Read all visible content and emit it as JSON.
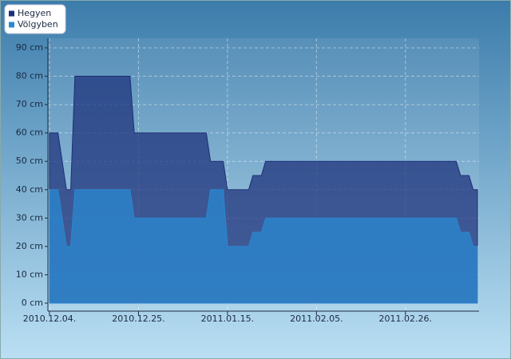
{
  "chart_data": {
    "type": "area",
    "x": [
      "2010-12-04",
      "2010-12-06",
      "2010-12-08",
      "2010-12-09",
      "2010-12-10",
      "2010-12-23",
      "2010-12-24",
      "2011-01-10",
      "2011-01-11",
      "2011-01-14",
      "2011-01-15",
      "2011-01-20",
      "2011-01-21",
      "2011-01-23",
      "2011-01-24",
      "2011-03-10",
      "2011-03-11",
      "2011-03-13",
      "2011-03-14",
      "2011-03-15"
    ],
    "series": [
      {
        "name": "Hegyen",
        "color": "#1c2f78",
        "values": [
          60,
          60,
          40,
          40,
          80,
          80,
          60,
          60,
          50,
          50,
          40,
          40,
          45,
          45,
          50,
          50,
          45,
          45,
          40,
          40
        ]
      },
      {
        "name": "Völgyben",
        "color": "#2a88d0",
        "values": [
          40,
          40,
          20,
          20,
          40,
          40,
          30,
          30,
          40,
          40,
          20,
          20,
          25,
          25,
          30,
          30,
          25,
          25,
          20,
          20
        ]
      }
    ],
    "xlim": [
      "2010-12-04",
      "2011-03-15"
    ],
    "xticks": [
      {
        "value": "2010-12-04",
        "label": "2010.12.04."
      },
      {
        "value": "2010-12-25",
        "label": "2010.12.25."
      },
      {
        "value": "2011-01-15",
        "label": "2011.01.15."
      },
      {
        "value": "2011-02-05",
        "label": "2011.02.05."
      },
      {
        "value": "2011-02-26",
        "label": "2011.02.26."
      }
    ],
    "ylim": [
      0,
      90
    ],
    "yticks": [
      {
        "value": 0,
        "label": "0 cm"
      },
      {
        "value": 10,
        "label": "10 cm"
      },
      {
        "value": 20,
        "label": "20 cm"
      },
      {
        "value": 30,
        "label": "30 cm"
      },
      {
        "value": 40,
        "label": "40 cm"
      },
      {
        "value": 50,
        "label": "50 cm"
      },
      {
        "value": 60,
        "label": "60 cm"
      },
      {
        "value": 70,
        "label": "70 cm"
      },
      {
        "value": 80,
        "label": "80 cm"
      },
      {
        "value": 90,
        "label": "90 cm"
      }
    ],
    "grid": true,
    "legend": "top-left"
  }
}
